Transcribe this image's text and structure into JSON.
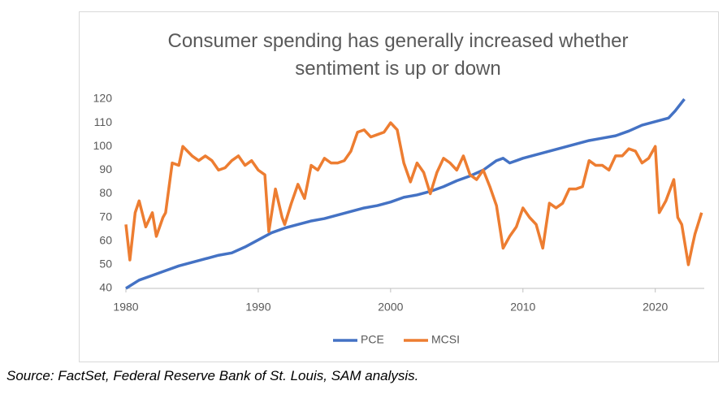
{
  "chart_data": {
    "type": "line",
    "title": "Consumer spending has generally increased whether sentiment is up or down",
    "source": "Source: FactSet, Federal Reserve Bank of St. Louis, SAM analysis.",
    "xlim": [
      1980,
      2023.7
    ],
    "xticks": [
      1980,
      1990,
      2000,
      2010,
      2020
    ],
    "ylim": [
      40,
      120
    ],
    "yticks": [
      40,
      50,
      60,
      70,
      80,
      90,
      100,
      110,
      120
    ],
    "grid": false,
    "legend": "bottom",
    "series": [
      {
        "name": "PCE",
        "color": "#4472c4",
        "x": [
          1980,
          1981,
          1982,
          1983,
          1984,
          1985,
          1986,
          1987,
          1988,
          1989,
          1990,
          1991,
          1992,
          1993,
          1994,
          1995,
          1996,
          1997,
          1998,
          1999,
          2000,
          2001,
          2002,
          2003,
          2004,
          2005,
          2006,
          2007,
          2008,
          2008.5,
          2009,
          2010,
          2011,
          2012,
          2013,
          2014,
          2015,
          2016,
          2017,
          2018,
          2019,
          2020,
          2021,
          2021.5,
          2022.2
        ],
        "values": [
          40,
          43.5,
          45.5,
          47.5,
          49.5,
          51,
          52.5,
          54,
          55,
          57.5,
          60.5,
          63.5,
          65.5,
          67,
          68.5,
          69.5,
          71,
          72.5,
          74,
          75,
          76.5,
          78.5,
          79.5,
          81,
          83,
          85.5,
          87.5,
          90,
          94,
          95,
          93,
          95,
          96.5,
          98,
          99.5,
          101,
          102.5,
          103.5,
          104.5,
          106.5,
          109,
          110.5,
          112,
          115,
          120
        ]
      },
      {
        "name": "MCSI",
        "color": "#ed7d31",
        "x": [
          1980,
          1980.3,
          1980.7,
          1981,
          1981.5,
          1982,
          1982.3,
          1982.8,
          1983,
          1983.5,
          1984,
          1984.3,
          1985,
          1985.5,
          1986,
          1986.5,
          1987,
          1987.5,
          1988,
          1988.5,
          1989,
          1989.5,
          1990,
          1990.5,
          1990.8,
          1991.3,
          1991.8,
          1992,
          1992.5,
          1993,
          1993.5,
          1994,
          1994.5,
          1995,
          1995.5,
          1996,
          1996.5,
          1997,
          1997.5,
          1998,
          1998.5,
          1999,
          1999.5,
          2000,
          2000.5,
          2001,
          2001.5,
          2002,
          2002.5,
          2003,
          2003.5,
          2004,
          2004.5,
          2005,
          2005.5,
          2006,
          2006.5,
          2007,
          2007.5,
          2008,
          2008.5,
          2009,
          2009.5,
          2010,
          2010.5,
          2011,
          2011.5,
          2012,
          2012.5,
          2013,
          2013.5,
          2014,
          2014.5,
          2015,
          2015.5,
          2016,
          2016.5,
          2017,
          2017.5,
          2018,
          2018.5,
          2019,
          2019.5,
          2020,
          2020.3,
          2020.8,
          2021,
          2021.4,
          2021.7,
          2022,
          2022.5,
          2022.8,
          2023,
          2023.5
        ],
        "values": [
          67,
          52,
          72,
          77,
          66,
          72,
          62,
          70,
          72,
          93,
          92,
          100,
          96,
          94,
          96,
          94,
          90,
          91,
          94,
          96,
          92,
          94,
          90,
          88,
          64,
          82,
          70,
          67,
          76,
          84,
          78,
          92,
          90,
          95,
          93,
          93,
          94,
          98,
          106,
          107,
          104,
          105,
          106,
          110,
          107,
          93,
          85,
          93,
          89,
          80,
          89,
          95,
          93,
          90,
          96,
          88,
          86,
          90,
          83,
          75,
          57,
          62,
          66,
          74,
          70,
          67,
          57,
          76,
          74,
          76,
          82,
          82,
          83,
          94,
          92,
          92,
          90,
          96,
          96,
          99,
          98,
          93,
          95,
          100,
          72,
          77,
          80,
          86,
          70,
          67,
          50,
          58,
          63,
          72
        ]
      }
    ]
  }
}
